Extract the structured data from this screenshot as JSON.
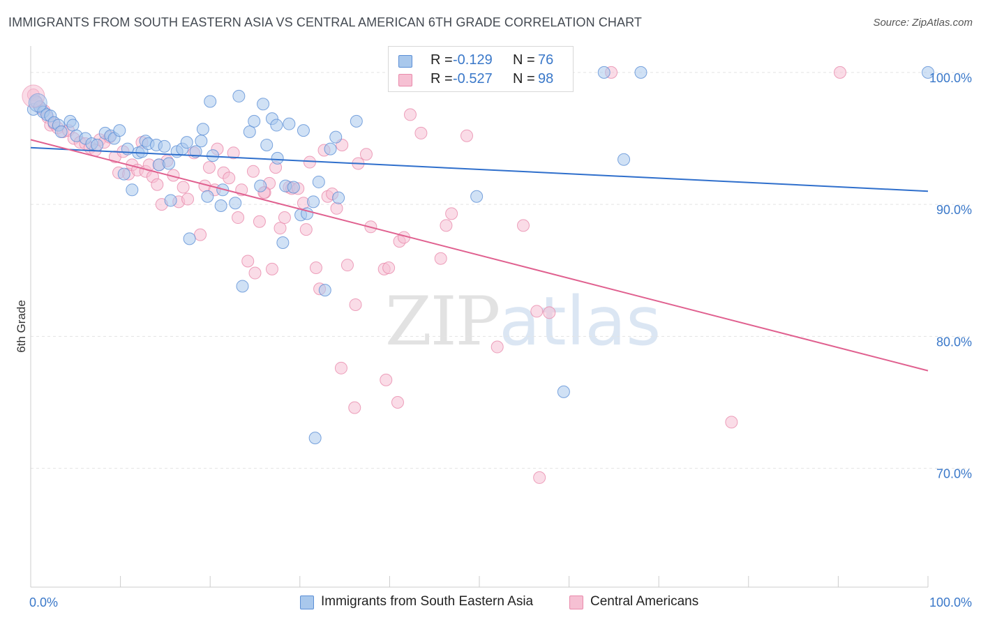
{
  "title": "IMMIGRANTS FROM SOUTH EASTERN ASIA VS CENTRAL AMERICAN 6TH GRADE CORRELATION CHART",
  "source": "Source: ZipAtlas.com",
  "watermark": {
    "zip": "ZIP",
    "atlas": "atlas"
  },
  "legend": {
    "r_label": "R =",
    "n_label": "N =",
    "rows": [
      {
        "r": "-0.129",
        "n": "76"
      },
      {
        "r": "-0.527",
        "n": "98"
      }
    ]
  },
  "bottom_legend": [
    "Immigrants from South Eastern Asia",
    "Central Americans"
  ],
  "colors": {
    "blue_fill": "#a9c8ec",
    "blue_stroke": "#5b8fd6",
    "blue_line": "#2f6fcc",
    "pink_fill": "#f6c0d3",
    "pink_stroke": "#e98aab",
    "pink_line": "#e0608f",
    "grid": "#e3e3e3",
    "tick_text": "#3a78c9"
  },
  "chart_data": {
    "type": "scatter",
    "title": "IMMIGRANTS FROM SOUTH EASTERN ASIA VS CENTRAL AMERICAN 6TH GRADE CORRELATION CHART",
    "xlabel": "",
    "ylabel": "6th Grade",
    "xlim": [
      0,
      100
    ],
    "ylim": [
      61,
      102
    ],
    "x_tick_labels": [
      "0.0%",
      "100.0%"
    ],
    "y_ticks": [
      70,
      80,
      90,
      100
    ],
    "y_tick_labels": [
      "70.0%",
      "80.0%",
      "90.0%",
      "100.0%"
    ],
    "grid": true,
    "legend_position": "top-center",
    "series": [
      {
        "name": "Immigrants from South Eastern Asia",
        "r": -0.129,
        "n": 76,
        "trend": {
          "x": [
            0,
            100
          ],
          "y": [
            94.3,
            91.0
          ]
        },
        "points": [
          [
            0.3,
            97.2
          ],
          [
            0.6,
            97.8
          ],
          [
            1.0,
            97.4
          ],
          [
            1.4,
            97.0
          ],
          [
            1.8,
            96.8
          ],
          [
            2.2,
            96.7
          ],
          [
            2.6,
            96.2
          ],
          [
            3.1,
            96.0
          ],
          [
            3.4,
            95.5
          ],
          [
            4.4,
            96.3
          ],
          [
            4.7,
            96.0
          ],
          [
            5.1,
            95.2
          ],
          [
            6.1,
            95.0
          ],
          [
            6.8,
            94.6
          ],
          [
            7.4,
            94.5
          ],
          [
            8.3,
            95.4
          ],
          [
            8.9,
            95.2
          ],
          [
            9.3,
            95.0
          ],
          [
            9.9,
            95.6
          ],
          [
            10.4,
            92.3
          ],
          [
            10.8,
            94.2
          ],
          [
            11.3,
            91.1
          ],
          [
            12.0,
            93.9
          ],
          [
            12.4,
            94.0
          ],
          [
            12.8,
            94.8
          ],
          [
            13.1,
            94.6
          ],
          [
            14.0,
            94.5
          ],
          [
            14.3,
            93.0
          ],
          [
            14.9,
            94.4
          ],
          [
            15.4,
            93.1
          ],
          [
            15.6,
            90.3
          ],
          [
            16.3,
            94.0
          ],
          [
            16.9,
            94.2
          ],
          [
            17.4,
            94.7
          ],
          [
            17.7,
            87.4
          ],
          [
            18.4,
            94.0
          ],
          [
            19.0,
            94.8
          ],
          [
            19.2,
            95.7
          ],
          [
            19.7,
            90.6
          ],
          [
            20.0,
            97.8
          ],
          [
            20.3,
            93.7
          ],
          [
            21.2,
            89.9
          ],
          [
            21.4,
            91.1
          ],
          [
            22.8,
            90.1
          ],
          [
            23.2,
            98.2
          ],
          [
            23.6,
            83.8
          ],
          [
            24.4,
            95.5
          ],
          [
            24.9,
            96.3
          ],
          [
            25.6,
            91.4
          ],
          [
            25.9,
            97.6
          ],
          [
            26.3,
            94.5
          ],
          [
            26.9,
            96.5
          ],
          [
            27.4,
            96.0
          ],
          [
            27.5,
            93.5
          ],
          [
            28.1,
            87.1
          ],
          [
            28.4,
            91.4
          ],
          [
            28.8,
            96.1
          ],
          [
            29.3,
            91.3
          ],
          [
            30.1,
            89.2
          ],
          [
            30.4,
            95.6
          ],
          [
            30.8,
            89.3
          ],
          [
            31.5,
            90.2
          ],
          [
            31.7,
            72.3
          ],
          [
            32.1,
            91.7
          ],
          [
            32.8,
            83.5
          ],
          [
            33.4,
            94.2
          ],
          [
            34.0,
            95.1
          ],
          [
            34.3,
            90.5
          ],
          [
            36.3,
            96.3
          ],
          [
            41.8,
            100.0
          ],
          [
            49.7,
            90.6
          ],
          [
            59.4,
            75.8
          ],
          [
            63.9,
            100.0
          ],
          [
            66.1,
            93.4
          ],
          [
            68.0,
            100.0
          ],
          [
            100.0,
            100.0
          ]
        ]
      },
      {
        "name": "Central Americans",
        "r": -0.527,
        "n": 98,
        "trend": {
          "x": [
            0,
            100
          ],
          "y": [
            94.9,
            77.4
          ]
        },
        "points": [
          [
            0.3,
            98.3
          ],
          [
            0.7,
            97.7
          ],
          [
            1.1,
            97.3
          ],
          [
            1.5,
            97.1
          ],
          [
            1.9,
            96.6
          ],
          [
            2.2,
            96.0
          ],
          [
            2.6,
            96.1
          ],
          [
            3.0,
            95.8
          ],
          [
            3.6,
            95.5
          ],
          [
            4.2,
            95.6
          ],
          [
            4.8,
            95.0
          ],
          [
            5.5,
            94.7
          ],
          [
            6.1,
            94.6
          ],
          [
            6.6,
            94.3
          ],
          [
            7.2,
            94.1
          ],
          [
            7.7,
            94.9
          ],
          [
            8.2,
            94.7
          ],
          [
            8.8,
            95.1
          ],
          [
            9.4,
            93.6
          ],
          [
            9.8,
            92.4
          ],
          [
            10.3,
            94.0
          ],
          [
            10.9,
            92.3
          ],
          [
            11.3,
            93.0
          ],
          [
            11.9,
            92.6
          ],
          [
            12.4,
            94.7
          ],
          [
            12.8,
            92.5
          ],
          [
            13.2,
            93.0
          ],
          [
            13.6,
            92.1
          ],
          [
            14.1,
            91.5
          ],
          [
            14.6,
            90.0
          ],
          [
            15.2,
            93.3
          ],
          [
            15.9,
            92.2
          ],
          [
            16.5,
            90.2
          ],
          [
            17.0,
            91.3
          ],
          [
            17.5,
            90.4
          ],
          [
            18.2,
            93.9
          ],
          [
            18.9,
            87.7
          ],
          [
            19.4,
            91.4
          ],
          [
            19.9,
            92.8
          ],
          [
            20.5,
            91.1
          ],
          [
            20.8,
            94.2
          ],
          [
            21.5,
            92.4
          ],
          [
            22.1,
            92.0
          ],
          [
            22.6,
            93.9
          ],
          [
            23.1,
            89.0
          ],
          [
            23.5,
            91.1
          ],
          [
            24.2,
            85.7
          ],
          [
            24.8,
            92.5
          ],
          [
            25.0,
            84.8
          ],
          [
            25.5,
            88.7
          ],
          [
            26.1,
            90.9
          ],
          [
            26.6,
            91.6
          ],
          [
            26.9,
            85.1
          ],
          [
            27.3,
            92.8
          ],
          [
            27.8,
            88.2
          ],
          [
            28.3,
            89.0
          ],
          [
            28.8,
            91.3
          ],
          [
            29.1,
            91.2
          ],
          [
            29.8,
            91.2
          ],
          [
            30.4,
            90.1
          ],
          [
            30.7,
            88.1
          ],
          [
            31.1,
            93.2
          ],
          [
            31.8,
            85.2
          ],
          [
            32.2,
            83.6
          ],
          [
            32.7,
            94.1
          ],
          [
            33.1,
            90.6
          ],
          [
            33.6,
            90.8
          ],
          [
            34.1,
            89.7
          ],
          [
            34.7,
            94.5
          ],
          [
            35.3,
            85.4
          ],
          [
            36.2,
            82.4
          ],
          [
            36.5,
            93.1
          ],
          [
            37.4,
            93.8
          ],
          [
            37.9,
            88.3
          ],
          [
            39.4,
            85.1
          ],
          [
            39.6,
            76.7
          ],
          [
            39.9,
            85.2
          ],
          [
            40.9,
            75.0
          ],
          [
            41.1,
            87.2
          ],
          [
            41.6,
            87.5
          ],
          [
            42.3,
            96.8
          ],
          [
            43.5,
            95.4
          ],
          [
            45.7,
            85.9
          ],
          [
            46.3,
            88.4
          ],
          [
            46.9,
            89.3
          ],
          [
            48.6,
            95.2
          ],
          [
            52.0,
            79.2
          ],
          [
            54.9,
            88.4
          ],
          [
            56.4,
            81.9
          ],
          [
            56.7,
            69.3
          ],
          [
            57.8,
            81.8
          ],
          [
            64.7,
            100.0
          ],
          [
            78.1,
            73.5
          ],
          [
            90.2,
            100.0
          ],
          [
            34.6,
            77.6
          ],
          [
            36.1,
            74.6
          ],
          [
            26.0,
            90.9
          ],
          [
            14.3,
            93.0
          ]
        ]
      }
    ]
  }
}
